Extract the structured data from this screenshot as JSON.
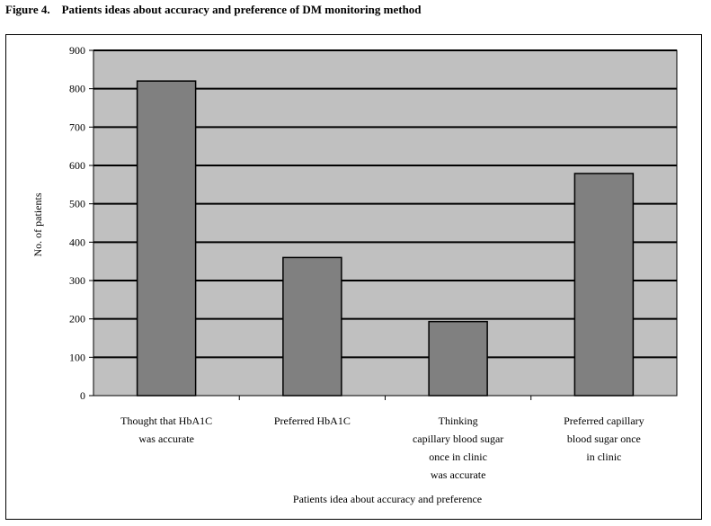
{
  "figure": {
    "label": "Figure 4.",
    "title": "Patients ideas about accuracy and preference of DM monitoring method"
  },
  "chart_data": {
    "type": "bar",
    "categories": [
      [
        "Thought that HbA1C",
        "was accurate"
      ],
      [
        "Preferred HbA1C"
      ],
      [
        "Thinking",
        "capillary blood sugar",
        "once in clinic",
        "was accurate"
      ],
      [
        "Preferred capillary",
        "blood sugar once",
        "in clinic"
      ]
    ],
    "values": [
      820,
      360,
      193,
      579
    ],
    "xlabel": "Patients idea about accuracy and preference",
    "ylabel": "No. of patients",
    "ylim": [
      0,
      900
    ],
    "yticks": [
      0,
      100,
      200,
      300,
      400,
      500,
      600,
      700,
      800,
      900
    ],
    "grid": true,
    "colors": {
      "plot_area": "#c0c0c0",
      "bar_fill": "#808080",
      "bar_stroke": "#000000",
      "gridline": "#000000"
    }
  }
}
